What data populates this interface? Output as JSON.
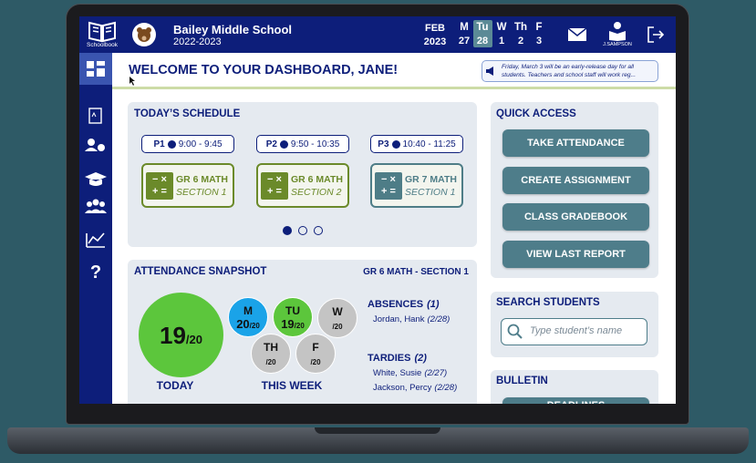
{
  "header": {
    "logo": "Schoolbook",
    "school": "Bailey Middle School",
    "year": "2022-2023",
    "month": "FEB",
    "month_year": "2023",
    "days": [
      {
        "day": "M",
        "date": "27"
      },
      {
        "day": "Tu",
        "date": "28",
        "selected": true
      },
      {
        "day": "W",
        "date": "1"
      },
      {
        "day": "Th",
        "date": "2"
      },
      {
        "day": "F",
        "date": "3"
      }
    ],
    "user": "J.SAMPSON"
  },
  "welcome": "WELCOME TO YOUR DASHBOARD, JANE!",
  "notice": "Friday, March 3 will be an early-release day for all students. Teachers and school staff will work reg...",
  "schedule": {
    "title": "TODAY’S SCHEDULE",
    "periods": [
      {
        "period": "P1",
        "time": "9:00 - 9:45",
        "course": "GR 6 MATH",
        "section": "SECTION 1",
        "color": "#6b8a2a"
      },
      {
        "period": "P2",
        "time": "9:50 - 10:35",
        "course": "GR 6 MATH",
        "section": "SECTION 2",
        "color": "#6b8a2a"
      },
      {
        "period": "P3",
        "time": "10:40 - 11:25",
        "course": "GR 7 MATH",
        "section": "SECTION 1",
        "color": "#4e7d87"
      }
    ],
    "page": 0,
    "pages": 3
  },
  "attendance": {
    "title": "ATTENDANCE SNAPSHOT",
    "class": "GR 6 MATH - SECTION 1",
    "today": {
      "count": "19",
      "total": "/20",
      "label": "TODAY",
      "color": "#5cc63c"
    },
    "week": {
      "label": "THIS WEEK",
      "days": [
        {
          "day": "M",
          "count": "20",
          "total": "/20",
          "color": "#1aa3e8"
        },
        {
          "day": "TU",
          "count": "19",
          "total": "/20",
          "color": "#5cc63c"
        },
        {
          "day": "W",
          "total": "/20",
          "color": "#c4c4c4"
        },
        {
          "day": "TH",
          "total": "/20",
          "color": "#c4c4c4"
        },
        {
          "day": "F",
          "total": "/20",
          "color": "#c4c4c4"
        }
      ]
    },
    "absences": {
      "label": "ABSENCES",
      "count": "(1)",
      "students": [
        {
          "name": "Jordan, Hank",
          "date": "(2/28)"
        }
      ]
    },
    "tardies": {
      "label": "TARDIES",
      "count": "(2)",
      "students": [
        {
          "name": "White, Susie",
          "date": "(2/27)"
        },
        {
          "name": "Jackson, Percy",
          "date": "(2/28)"
        }
      ]
    }
  },
  "quick_access": {
    "title": "QUICK ACCESS",
    "buttons": [
      "TAKE ATTENDANCE",
      "CREATE ASSIGNMENT",
      "CLASS GRADEBOOK",
      "VIEW LAST REPORT"
    ]
  },
  "search": {
    "title": "SEARCH STUDENTS",
    "placeholder": "Type student’s name"
  },
  "bulletin": {
    "title": "BULLETIN",
    "buttons": [
      "DEADLINES"
    ]
  }
}
